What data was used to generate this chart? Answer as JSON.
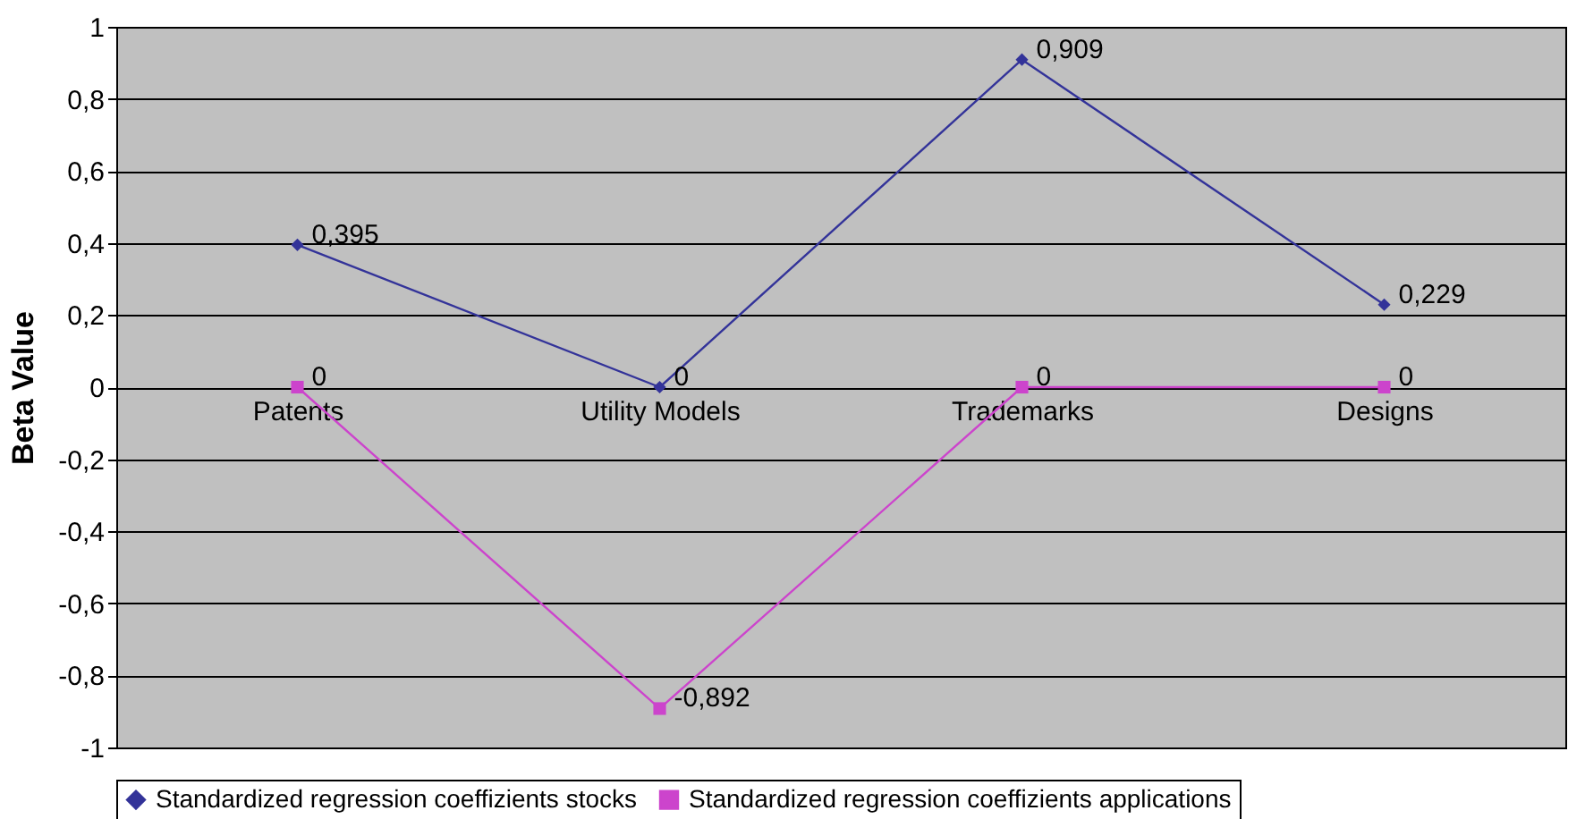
{
  "chart_data": {
    "type": "line",
    "ylabel": "Beta Value",
    "categories": [
      "Patents",
      "Utility Models",
      "Trademarks",
      "Designs"
    ],
    "series": [
      {
        "name": "Standardized regression coeffizients stocks",
        "color": "#333399",
        "marker": "diamond",
        "values": [
          0.395,
          0,
          0.909,
          0.229
        ],
        "value_labels": [
          "0,395",
          "0",
          "0,909",
          "0,229"
        ]
      },
      {
        "name": "Standardized regression coeffizients applications",
        "color": "#cc44cc",
        "marker": "square",
        "values": [
          0,
          -0.892,
          0,
          0
        ],
        "value_labels": [
          "0",
          "-0,892",
          "0",
          "0"
        ]
      }
    ],
    "ylim": [
      -1,
      1
    ],
    "yticks": [
      -1,
      {
        "value": -0.8,
        "label": "-0,8"
      },
      {
        "value": -0.6,
        "label": "-0,6"
      },
      {
        "value": -0.4,
        "label": "-0,4"
      },
      {
        "value": -0.2,
        "label": "-0,2"
      },
      0,
      {
        "value": 0.2,
        "label": "0,2"
      },
      {
        "value": 0.4,
        "label": "0,4"
      },
      {
        "value": 0.6,
        "label": "0,6"
      },
      {
        "value": 0.8,
        "label": "0,8"
      },
      1
    ],
    "grid": "y",
    "legend": "bottom",
    "line_style": "solid"
  }
}
